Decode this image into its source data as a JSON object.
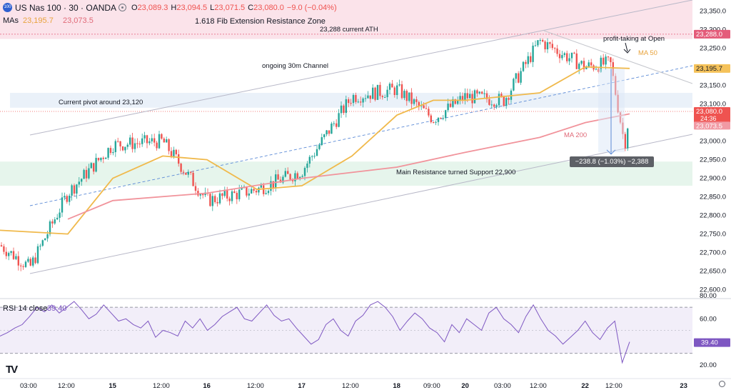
{
  "header": {
    "badge": "100",
    "symbol": "US Nas 100 · 30 · OANDA",
    "ohlc": [
      {
        "label": "O",
        "value": "23,089.3"
      },
      {
        "label": "H",
        "value": "23,094.5"
      },
      {
        "label": "L",
        "value": "23,071.5"
      },
      {
        "label": "C",
        "value": "23,080.0"
      }
    ],
    "change": "−9.0 (−0.04%)",
    "mas_label": "MAs",
    "ma50_value": "23,195.7",
    "ma200_value": "23,073.5"
  },
  "annotations": {
    "fib_zone": "1.618 Fib Extension Resistance Zone",
    "ath": "23,288 current ATH",
    "profit_taking": "profit-taking at Open",
    "channel": "ongoing 30m Channel",
    "pivot": "Current pivot around 23,120",
    "support": "Main Resistance turned Support 22,900",
    "ma50": "MA 50",
    "ma200": "MA 200",
    "measure": "−238.8 (−1.03%) −2,388"
  },
  "price_axis": {
    "ticks": [
      "23,350.0",
      "23,300.0",
      "23,250.0",
      "23,200.0",
      "23,150.0",
      "23,100.0",
      "23,050.0",
      "23,000.0",
      "22,950.0",
      "22,900.0",
      "22,850.0",
      "22,800.0",
      "22,750.0",
      "22,700.0",
      "22,650.0",
      "22,600.0"
    ],
    "tags": {
      "ath": "23,288.0",
      "ma50": "23,195.7",
      "price": "23,080.0",
      "countdown": "24:36",
      "ma200": "23,073.5"
    }
  },
  "time_axis": {
    "labels": [
      "03:00",
      "12:00",
      "15",
      "12:00",
      "16",
      "12:00",
      "17",
      "12:00",
      "18",
      "09:00",
      "20",
      "03:00",
      "12:00",
      "22",
      "12:00",
      "23"
    ]
  },
  "rsi": {
    "label": "RSI 14 close",
    "value": "39.40",
    "ticks": [
      "80.00",
      "60.00",
      "20.00"
    ],
    "tag": "39.40"
  },
  "colors": {
    "up": "#26a69a",
    "down": "#ef5350",
    "ma50": "#f0b94b",
    "ma200": "#f1939b",
    "rsi": "#7e57c2",
    "channel": "#b8b8c8",
    "fib_zone": "#fbe3ea",
    "pivot_zone": "#eaf1f9",
    "support_zone": "#e6f5ec"
  },
  "chart_data": {
    "type": "candlestick",
    "instrument": "US Nas 100",
    "timeframe": "30",
    "source": "OANDA",
    "y_range": [
      22580,
      23380
    ],
    "x_labels": [
      "03:00",
      "12:00",
      "15",
      "12:00",
      "16",
      "12:00",
      "17",
      "12:00",
      "18",
      "09:00",
      "20",
      "03:00",
      "12:00",
      "22",
      "12:00",
      "23"
    ],
    "close_path": [
      {
        "t": "start",
        "close": 22720
      },
      {
        "t": "03:00",
        "close": 22660
      },
      {
        "t": "12:00",
        "close": 22860
      },
      {
        "t": "15",
        "close": 22990
      },
      {
        "t": "15 12:00",
        "close": 23000
      },
      {
        "t": "16",
        "close": 22840
      },
      {
        "t": "16 12:00",
        "close": 22870
      },
      {
        "t": "17",
        "close": 22920
      },
      {
        "t": "17 12:00",
        "close": 23120
      },
      {
        "t": "18",
        "close": 23140
      },
      {
        "t": "18 09:00",
        "close": 23060
      },
      {
        "t": "20",
        "close": 23120
      },
      {
        "t": "20 03:00",
        "close": 23110
      },
      {
        "t": "20 12:00",
        "close": 23270
      },
      {
        "t": "22",
        "close": 23200
      },
      {
        "t": "22 05:00",
        "close": 23210
      },
      {
        "t": "22 07:00",
        "close": 22990
      },
      {
        "t": "22 08:00",
        "close": 23080
      }
    ],
    "ma50_path": [
      {
        "t": "start",
        "value": 22760
      },
      {
        "t": "12:00",
        "value": 22750
      },
      {
        "t": "15",
        "value": 22900
      },
      {
        "t": "15 12:00",
        "value": 22960
      },
      {
        "t": "16",
        "value": 22950
      },
      {
        "t": "16 12:00",
        "value": 22870
      },
      {
        "t": "17",
        "value": 22880
      },
      {
        "t": "17 12:00",
        "value": 22960
      },
      {
        "t": "18",
        "value": 23070
      },
      {
        "t": "18 09:00",
        "value": 23110
      },
      {
        "t": "20",
        "value": 23110
      },
      {
        "t": "20 12:00",
        "value": 23130
      },
      {
        "t": "22",
        "value": 23200
      },
      {
        "t": "22 08:00",
        "value": 23195.7
      }
    ],
    "ma200_path": [
      {
        "t": "12:00",
        "value": 22790
      },
      {
        "t": "15",
        "value": 22840
      },
      {
        "t": "16",
        "value": 22860
      },
      {
        "t": "17",
        "value": 22900
      },
      {
        "t": "18",
        "value": 22930
      },
      {
        "t": "20",
        "value": 22970
      },
      {
        "t": "20 12:00",
        "value": 23010
      },
      {
        "t": "22",
        "value": 23050
      },
      {
        "t": "22 08:00",
        "value": 23073.5
      }
    ],
    "zones": [
      {
        "name": "1.618 Fib Extension Resistance Zone",
        "from": 23275,
        "to": 23380
      },
      {
        "name": "Current pivot around 23,120",
        "from": 23090,
        "to": 23130
      },
      {
        "name": "Main Resistance turned Support 22,900",
        "from": 22880,
        "to": 22945
      }
    ],
    "current_price": 23080.0,
    "ath": 23288.0,
    "measure": {
      "change": -238.8,
      "percent": -1.03,
      "ticks": -2388
    },
    "rsi": {
      "period": 14,
      "last": 39.4,
      "levels": [
        70,
        30
      ],
      "range": [
        15,
        80
      ],
      "path": [
        45,
        48,
        52,
        55,
        62,
        70,
        66,
        72,
        65,
        70,
        75,
        68,
        60,
        64,
        72,
        65,
        58,
        60,
        55,
        52,
        58,
        44,
        50,
        48,
        45,
        58,
        52,
        60,
        50,
        55,
        62,
        66,
        70,
        60,
        58,
        65,
        72,
        63,
        58,
        60,
        52,
        45,
        38,
        42,
        55,
        60,
        50,
        45,
        58,
        63,
        72,
        75,
        70,
        62,
        50,
        58,
        65,
        60,
        52,
        48,
        40,
        55,
        48,
        60,
        55,
        50,
        65,
        70,
        60,
        55,
        48,
        62,
        72,
        60,
        50,
        45,
        38,
        44,
        50,
        58,
        48,
        42,
        52,
        58,
        22,
        40
      ]
    }
  }
}
